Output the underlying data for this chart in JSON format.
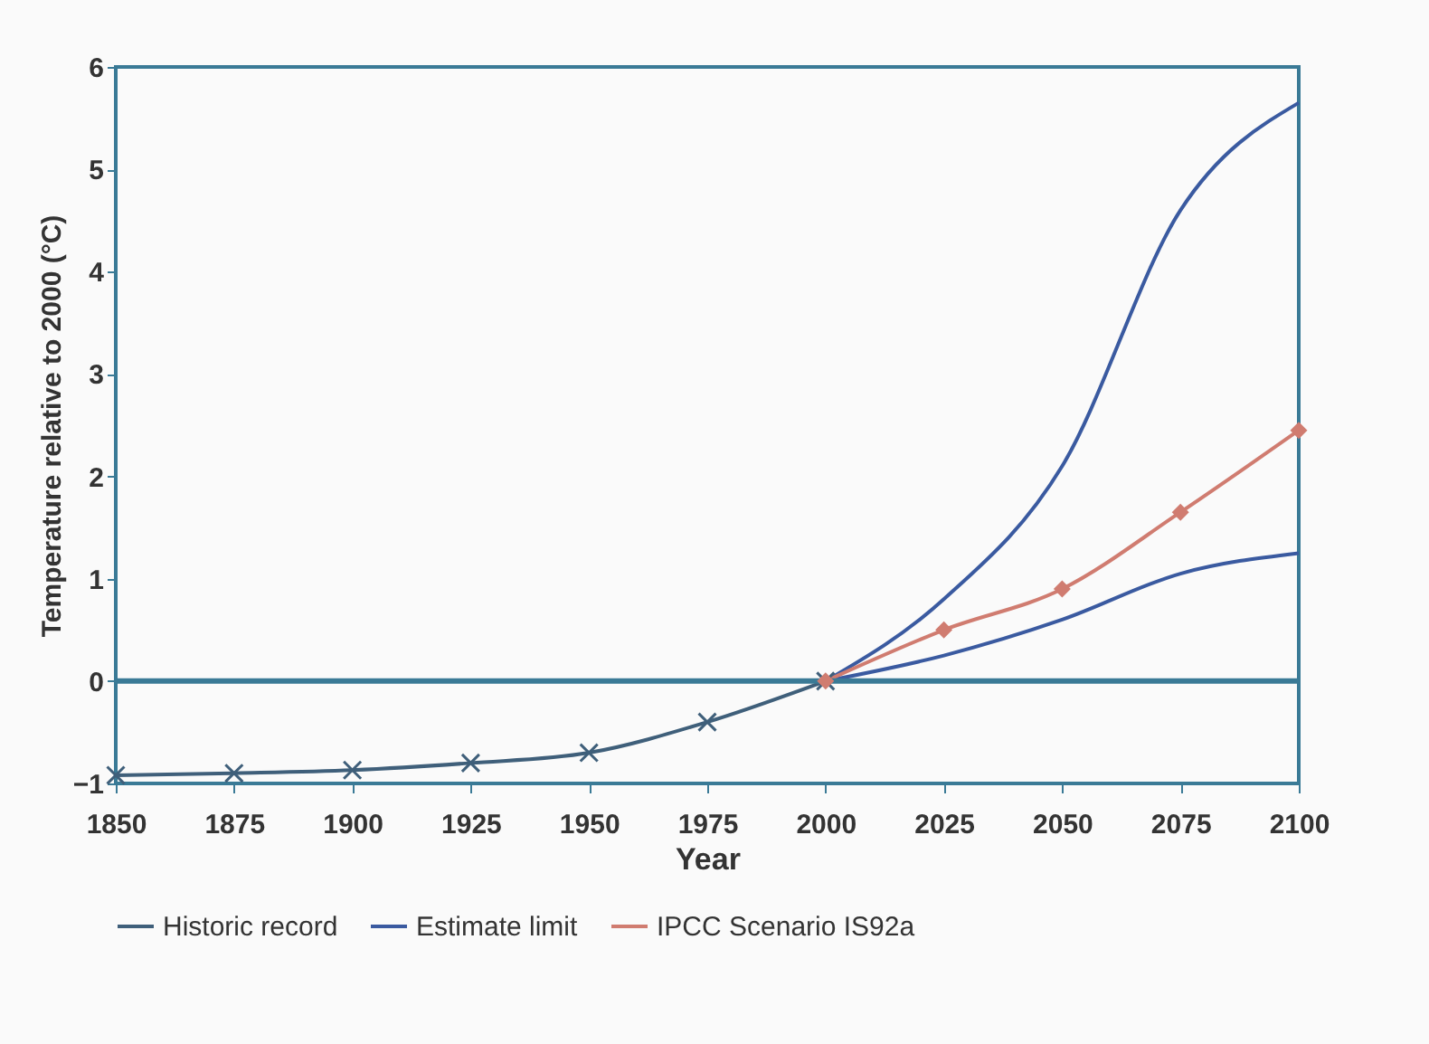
{
  "chart_data": {
    "type": "line",
    "xlabel": "Year",
    "ylabel": "Temperature relative to 2000 (°C)",
    "xlim": [
      1850,
      2100
    ],
    "xticks": [
      1850,
      1875,
      1900,
      1925,
      1950,
      1975,
      2000,
      2025,
      2050,
      2075,
      2100
    ],
    "ylim": [
      -1,
      6
    ],
    "yticks": [
      -1,
      0,
      1,
      2,
      3,
      4,
      5,
      6
    ],
    "grid": false,
    "legend": "bottom",
    "ref_lines": [
      {
        "axis": "y",
        "value": 0,
        "color": "#3a7a96"
      }
    ],
    "series": [
      {
        "name": "Historic record",
        "color": "#3f5f7a",
        "marker": "cross",
        "x": [
          1850,
          1875,
          1900,
          1925,
          1950,
          1975,
          2000
        ],
        "values": [
          -0.92,
          -0.9,
          -0.87,
          -0.8,
          -0.7,
          -0.4,
          0
        ]
      },
      {
        "name": "Estimate limit",
        "color": "#3a5aa0",
        "marker": "none",
        "x": [
          2000,
          2025,
          2050,
          2075,
          2100
        ],
        "values": [
          0,
          0.8,
          2.1,
          4.6,
          5.65
        ]
      },
      {
        "color": "#3a5aa0",
        "marker": "none",
        "x": [
          2000,
          2025,
          2050,
          2075,
          2100
        ],
        "values": [
          0,
          0.25,
          0.6,
          1.05,
          1.25
        ]
      },
      {
        "name": "IPCC Scenario IS92a",
        "color": "#d07c70",
        "marker": "diamond",
        "x": [
          2000,
          2025,
          2050,
          2075,
          2100
        ],
        "values": [
          0,
          0.5,
          0.9,
          1.65,
          2.45
        ]
      }
    ]
  }
}
